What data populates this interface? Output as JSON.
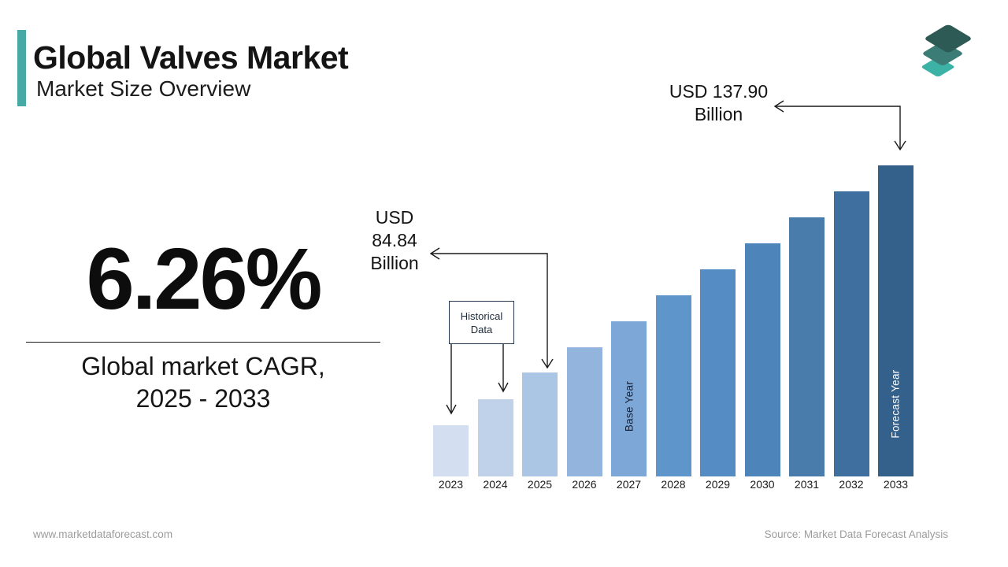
{
  "header": {
    "title": "Global Valves Market",
    "subtitle": "Market Size Overview"
  },
  "stat": {
    "value": "6.26%",
    "caption_line1": "Global market CAGR,",
    "caption_line2": "2025 - 2033"
  },
  "annotations": {
    "label_2025": {
      "lines": [
        "USD",
        "84.84",
        "Billion"
      ]
    },
    "label_2033": {
      "lines": [
        "USD 137.90",
        "Billion"
      ]
    },
    "historical_box": {
      "lines": [
        "Historical",
        "Data"
      ]
    },
    "base_year_label": "Base Year",
    "forecast_year_label": "Forecast Year"
  },
  "footer": {
    "website": "www.marketdataforecast.com",
    "source": "Source: Market Data Forecast Analysis"
  },
  "colors": {
    "brand_teal": "#45aaa5",
    "box_border_navy": "#24374f",
    "arrow_black": "#1a1a1a",
    "logo_top": "#2d5a55",
    "logo_middle": "#3c7c76",
    "logo_bottom": "#3cb1a5"
  },
  "chart_data": {
    "type": "bar",
    "title": "Global Valves Market Size Overview, 2023-2033",
    "unit": "USD Billion",
    "categories": [
      "2023",
      "2024",
      "2025",
      "2026",
      "2027",
      "2028",
      "2029",
      "2030",
      "2031",
      "2032",
      "2033"
    ],
    "values": [
      75.14,
      79.84,
      84.84,
      90.15,
      95.79,
      101.79,
      108.16,
      114.93,
      122.13,
      129.77,
      137.9
    ],
    "values_note": "Only 2025 (USD 84.84 Billion) and 2033 (USD 137.90 Billion) are labeled on the chart; intermediate values estimated from the stated 6.26% CAGR",
    "labeled_points": [
      {
        "year": "2025",
        "label": "USD 84.84 Billion"
      },
      {
        "year": "2033",
        "label": "USD 137.90 Billion"
      }
    ],
    "cagr_percent": 6.26,
    "cagr_period": "2025 - 2033",
    "historical_years": [
      "2023",
      "2024"
    ],
    "base_year": "2027",
    "forecast_year": "2033",
    "bar_colors": [
      "#d3def0",
      "#c0d2ea",
      "#abc6e5",
      "#93b5dd",
      "#7ca7d6",
      "#5e95ca",
      "#558cc4",
      "#4d84ba",
      "#497cab",
      "#3f6f9e",
      "#34618c"
    ],
    "legend": "none",
    "gridlines": false,
    "value_axis_visible": false,
    "xlabel": "",
    "ylabel": ""
  }
}
